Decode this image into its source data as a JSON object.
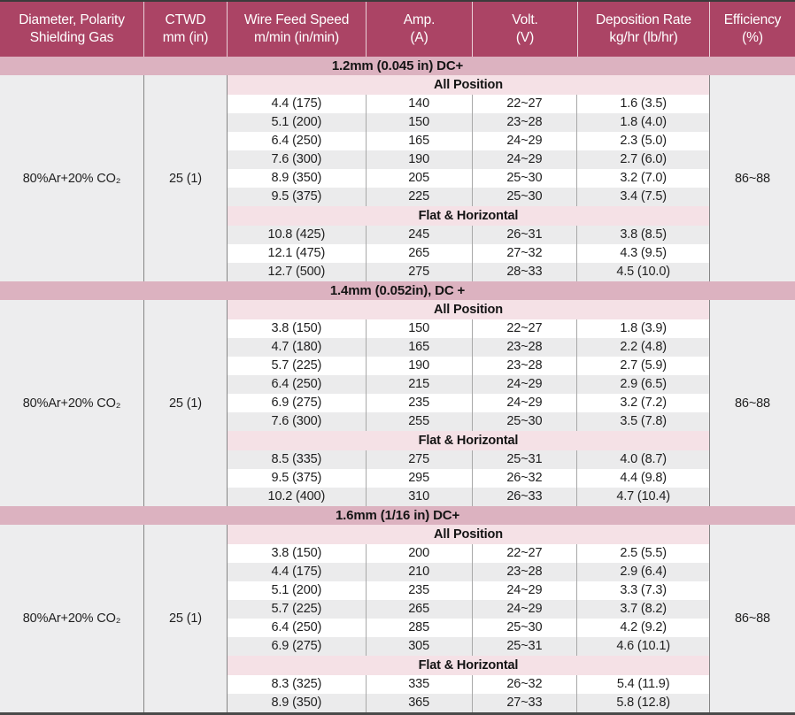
{
  "colors": {
    "header_bg": "#ab4465",
    "section_band_bg": "#dcb2c0",
    "sub_band_bg": "#f5e1e6",
    "row_stripe_bg": "#ebebec",
    "side_cell_bg": "#ededee",
    "header_text": "#ffffff",
    "body_text": "#1f1f1f"
  },
  "table": {
    "header": {
      "columns": [
        {
          "line1": "Diameter, Polarity",
          "line2": "Shielding Gas"
        },
        {
          "line1": "CTWD",
          "line2": "mm (in)"
        },
        {
          "line1": "Wire Feed Speed",
          "line2": "m/min (in/min)"
        },
        {
          "line1": "Amp.",
          "line2": "(A)"
        },
        {
          "line1": "Volt.",
          "line2": "(V)"
        },
        {
          "line1": "Deposition Rate",
          "line2": "kg/hr (lb/hr)"
        },
        {
          "line1": "Efficiency",
          "line2": "(%)"
        }
      ]
    },
    "sections": [
      {
        "title": "1.2mm (0.045 in) DC+",
        "shielding_gas": "80%Ar+20% CO₂",
        "ctwd": "25 (1)",
        "efficiency": "86~88",
        "subsections": [
          {
            "label": "All Position",
            "stripe_offset": 0,
            "rows": [
              [
                "4.4 (175)",
                "140",
                "22~27",
                "1.6 (3.5)"
              ],
              [
                "5.1 (200)",
                "150",
                "23~28",
                "1.8 (4.0)"
              ],
              [
                "6.4 (250)",
                "165",
                "24~29",
                "2.3 (5.0)"
              ],
              [
                "7.6 (300)",
                "190",
                "24~29",
                "2.7 (6.0)"
              ],
              [
                "8.9 (350)",
                "205",
                "25~30",
                "3.2 (7.0)"
              ],
              [
                "9.5 (375)",
                "225",
                "25~30",
                "3.4 (7.5)"
              ]
            ]
          },
          {
            "label": "Flat & Horizontal",
            "stripe_offset": 1,
            "rows": [
              [
                "10.8 (425)",
                "245",
                "26~31",
                "3.8 (8.5)"
              ],
              [
                "12.1 (475)",
                "265",
                "27~32",
                "4.3 (9.5)"
              ],
              [
                "12.7 (500)",
                "275",
                "28~33",
                "4.5 (10.0)"
              ]
            ]
          }
        ]
      },
      {
        "title": "1.4mm (0.052in), DC +",
        "shielding_gas": "80%Ar+20% CO₂",
        "ctwd": "25 (1)",
        "efficiency": "86~88",
        "subsections": [
          {
            "label": "All Position",
            "stripe_offset": 0,
            "rows": [
              [
                "3.8 (150)",
                "150",
                "22~27",
                "1.8 (3.9)"
              ],
              [
                "4.7 (180)",
                "165",
                "23~28",
                "2.2 (4.8)"
              ],
              [
                "5.7 (225)",
                "190",
                "23~28",
                "2.7 (5.9)"
              ],
              [
                "6.4 (250)",
                "215",
                "24~29",
                "2.9 (6.5)"
              ],
              [
                "6.9 (275)",
                "235",
                "24~29",
                "3.2 (7.2)"
              ],
              [
                "7.6 (300)",
                "255",
                "25~30",
                "3.5 (7.8)"
              ]
            ]
          },
          {
            "label": "Flat & Horizontal",
            "stripe_offset": 1,
            "rows": [
              [
                "8.5 (335)",
                "275",
                "25~31",
                "4.0 (8.7)"
              ],
              [
                "9.5 (375)",
                "295",
                "26~32",
                "4.4 (9.8)"
              ],
              [
                "10.2 (400)",
                "310",
                "26~33",
                "4.7 (10.4)"
              ]
            ]
          }
        ]
      },
      {
        "title": "1.6mm (1/16 in) DC+",
        "shielding_gas": "80%Ar+20% CO₂",
        "ctwd": "25 (1)",
        "efficiency": "86~88",
        "subsections": [
          {
            "label": "All Position",
            "stripe_offset": 0,
            "rows": [
              [
                "3.8 (150)",
                "200",
                "22~27",
                "2.5 (5.5)"
              ],
              [
                "4.4 (175)",
                "210",
                "23~28",
                "2.9 (6.4)"
              ],
              [
                "5.1 (200)",
                "235",
                "24~29",
                "3.3 (7.3)"
              ],
              [
                "5.7 (225)",
                "265",
                "24~29",
                "3.7 (8.2)"
              ],
              [
                "6.4 (250)",
                "285",
                "25~30",
                "4.2 (9.2)"
              ],
              [
                "6.9 (275)",
                "305",
                "25~31",
                "4.6 (10.1)"
              ]
            ]
          },
          {
            "label": "Flat & Horizontal",
            "stripe_offset": 0,
            "rows": [
              [
                "8.3 (325)",
                "335",
                "26~32",
                "5.4 (11.9)"
              ],
              [
                "8.9 (350)",
                "365",
                "27~33",
                "5.8 (12.8)"
              ]
            ]
          }
        ]
      }
    ]
  }
}
